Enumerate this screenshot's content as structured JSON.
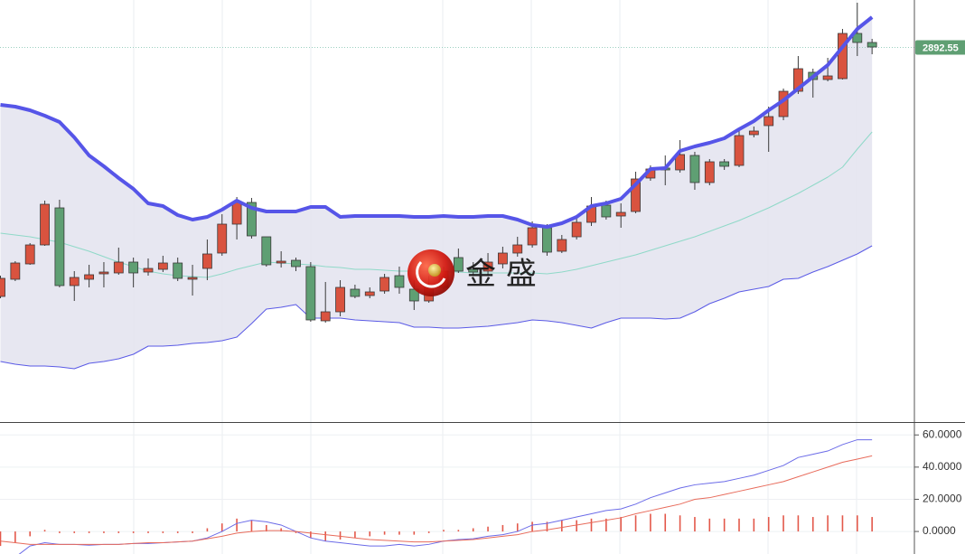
{
  "chart_data": [
    {
      "type": "candlestick",
      "open": [
        2617,
        2636,
        2653,
        2674,
        2715,
        2629,
        2636,
        2642,
        2643,
        2655,
        2644,
        2647,
        2654,
        2636,
        2648,
        2665,
        2697,
        2721,
        2683,
        2654,
        2657,
        2650,
        2590,
        2600,
        2625,
        2618,
        2623,
        2640,
        2625,
        2612,
        2627,
        2660,
        2647,
        2645,
        2653,
        2665,
        2674,
        2693,
        2667,
        2683,
        2699,
        2718,
        2706,
        2711,
        2748,
        2759,
        2757,
        2773,
        2743,
        2766,
        2762,
        2796,
        2806,
        2816,
        2844,
        2865,
        2857,
        2858,
        2908,
        2898
      ],
      "high": [
        2640,
        2656,
        2676,
        2723,
        2724,
        2645,
        2652,
        2655,
        2671,
        2660,
        2659,
        2662,
        2660,
        2652,
        2680,
        2708,
        2727,
        2726,
        2683,
        2667,
        2660,
        2655,
        2633,
        2635,
        2630,
        2627,
        2642,
        2650,
        2635,
        2640,
        2650,
        2670,
        2655,
        2665,
        2672,
        2683,
        2700,
        2697,
        2685,
        2705,
        2727,
        2723,
        2720,
        2755,
        2762,
        2773,
        2790,
        2777,
        2769,
        2769,
        2800,
        2805,
        2827,
        2847,
        2883,
        2869,
        2881,
        2913,
        2942,
        2902
      ],
      "low": [
        2615,
        2634,
        2652,
        2673,
        2627,
        2612,
        2627,
        2627,
        2641,
        2627,
        2640,
        2644,
        2634,
        2618,
        2635,
        2662,
        2680,
        2681,
        2650,
        2649,
        2645,
        2589,
        2588,
        2595,
        2615,
        2615,
        2620,
        2620,
        2602,
        2610,
        2625,
        2643,
        2640,
        2640,
        2648,
        2661,
        2671,
        2662,
        2665,
        2680,
        2695,
        2702,
        2693,
        2709,
        2745,
        2740,
        2754,
        2735,
        2740,
        2757,
        2760,
        2793,
        2777,
        2812,
        2841,
        2837,
        2855,
        2857,
        2883,
        2885
      ],
      "close": [
        2637,
        2654,
        2674,
        2719,
        2629,
        2638,
        2641,
        2644,
        2655,
        2643,
        2648,
        2654,
        2637,
        2638,
        2664,
        2697,
        2721,
        2684,
        2652,
        2656,
        2650,
        2591,
        2600,
        2627,
        2617,
        2622,
        2638,
        2627,
        2612,
        2627,
        2645,
        2645,
        2644,
        2655,
        2665,
        2674,
        2693,
        2666,
        2680,
        2699,
        2717,
        2705,
        2710,
        2747,
        2758,
        2757,
        2774,
        2743,
        2766,
        2761,
        2795,
        2800,
        2816,
        2844,
        2869,
        2857,
        2861,
        2908,
        2898,
        2893
      ],
      "up_color": "#d9533f",
      "down_color": "#5f9f73",
      "bands": {
        "upper": [
          2829,
          2827,
          2823,
          2817,
          2810,
          2793,
          2773,
          2761,
          2748,
          2736,
          2720,
          2717,
          2707,
          2702,
          2705,
          2713,
          2723,
          2715,
          2711,
          2711,
          2711,
          2716,
          2716,
          2705,
          2706,
          2706,
          2706,
          2706,
          2705,
          2705,
          2706,
          2705,
          2705,
          2706,
          2706,
          2702,
          2696,
          2694,
          2698,
          2705,
          2717,
          2720,
          2725,
          2741,
          2758,
          2759,
          2778,
          2783,
          2787,
          2792,
          2802,
          2811,
          2823,
          2834,
          2847,
          2860,
          2873,
          2893,
          2913,
          2926
        ],
        "middle": [
          2687,
          2685,
          2683,
          2680,
          2677,
          2672,
          2667,
          2661,
          2655,
          2650,
          2645,
          2642,
          2640,
          2639,
          2638,
          2642,
          2647,
          2651,
          2655,
          2654,
          2653,
          2652,
          2650,
          2649,
          2647,
          2647,
          2646,
          2645,
          2645,
          2645,
          2644,
          2644,
          2643,
          2643,
          2643,
          2643,
          2643,
          2642,
          2644,
          2647,
          2651,
          2655,
          2659,
          2663,
          2668,
          2673,
          2678,
          2683,
          2689,
          2695,
          2701,
          2708,
          2715,
          2723,
          2731,
          2740,
          2749,
          2760,
          2780,
          2799
        ],
        "lower": [
          2545,
          2542,
          2540,
          2540,
          2539,
          2537,
          2543,
          2545,
          2548,
          2553,
          2562,
          2562,
          2563,
          2565,
          2566,
          2568,
          2572,
          2587,
          2603,
          2605,
          2608,
          2593,
          2593,
          2593,
          2591,
          2590,
          2589,
          2588,
          2583,
          2583,
          2582,
          2582,
          2583,
          2584,
          2586,
          2588,
          2591,
          2590,
          2588,
          2585,
          2582,
          2588,
          2593,
          2593,
          2593,
          2592,
          2593,
          2600,
          2609,
          2615,
          2622,
          2625,
          2628,
          2636,
          2637,
          2644,
          2650,
          2657,
          2664,
          2673
        ],
        "upper_color": "#5655e8",
        "middle_color": "#8fd9c8",
        "lower_color": "#5a5ae6",
        "fill_color": "#e4e4ef"
      },
      "last_price": 2892.55,
      "last_price_color": "#5f9f73",
      "watermark": "金 盛",
      "ylim": [
        2478,
        2945
      ]
    },
    {
      "type": "macd",
      "values": [
        -9,
        -7,
        -3,
        1,
        -1,
        -1,
        -1,
        -1,
        -1,
        -1,
        -1,
        -1,
        -1,
        -1,
        2,
        5,
        8,
        7,
        4,
        2,
        -1,
        -4,
        -6,
        -5,
        -4,
        -3,
        -2,
        -2,
        -2,
        -1,
        1,
        1,
        2,
        3,
        4,
        5,
        6,
        6,
        7,
        7,
        8,
        8,
        9,
        10,
        11,
        11,
        10,
        9,
        8,
        8,
        8,
        8,
        9,
        10,
        10,
        9,
        10,
        10,
        10,
        9
      ],
      "color": "#e3584a",
      "series": [
        {
          "color": "#6b6be8",
          "values": [
            -20,
            -16,
            -9,
            -7,
            -8,
            -8,
            -8.5,
            -8,
            -8,
            -7.5,
            -7.5,
            -7,
            -6.5,
            -6,
            -4,
            0,
            5,
            7,
            6,
            4,
            0,
            -4,
            -6,
            -7,
            -8,
            -9,
            -9,
            -8,
            -9,
            -8,
            -6,
            -5,
            -4.5,
            -3,
            -2,
            0,
            4,
            5,
            7,
            9,
            11,
            13,
            14,
            17,
            21,
            24,
            27,
            29,
            30,
            31,
            33,
            35,
            38,
            41,
            46,
            48,
            50,
            54,
            57,
            57
          ]
        },
        {
          "color": "#e86b5b",
          "values": [
            -6,
            -7,
            -8,
            -8,
            -8,
            -8,
            -8,
            -8,
            -8,
            -7.5,
            -7,
            -7,
            -6.5,
            -6,
            -4.5,
            -3,
            -1,
            0,
            0.5,
            0.5,
            0,
            -1,
            -2,
            -3,
            -4,
            -5,
            -5.5,
            -6,
            -6.5,
            -6.5,
            -6,
            -5.5,
            -5,
            -4,
            -3,
            -2,
            0,
            1,
            2.5,
            4,
            5.5,
            7,
            8.5,
            11,
            13,
            15,
            17,
            20,
            21,
            23,
            25,
            27,
            29,
            31,
            34,
            37,
            40,
            43,
            45,
            47
          ]
        }
      ],
      "ylim": [
        -14,
        68
      ],
      "yticks": [
        {
          "value": 60,
          "label": "60.0000"
        },
        {
          "value": 40,
          "label": "40.0000"
        },
        {
          "value": 20,
          "label": "20.0000"
        },
        {
          "value": 0,
          "label": "0.0000"
        }
      ],
      "grid": true
    }
  ]
}
